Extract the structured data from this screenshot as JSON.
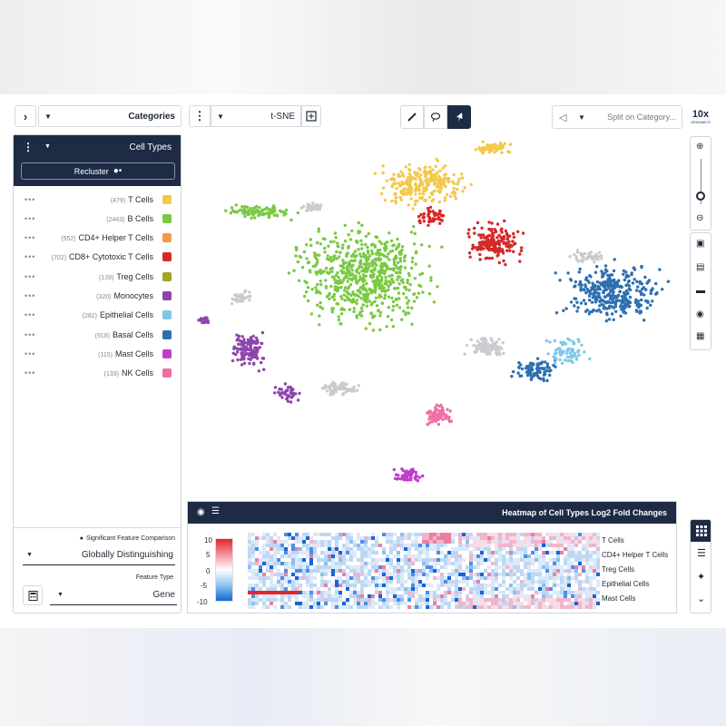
{
  "toolbar": {
    "categories_label": "Categories",
    "projection_label": "t-SNE",
    "split_placeholder": "Split on Category...",
    "logo_text": "10x",
    "logo_subtext": "GENOMICS",
    "nav_icon": "chevron-right-icon",
    "tools": [
      "brush-icon",
      "lasso-icon",
      "pointer-icon"
    ]
  },
  "left_panel": {
    "title": "Cell Types",
    "recluster_label": "Recluster",
    "items": [
      {
        "name": "T Cells",
        "count": "(479)",
        "color": "#f2c94c"
      },
      {
        "name": "B Cells",
        "count": "(2443)",
        "color": "#7ac943"
      },
      {
        "name": "CD4+ Helper T Cells",
        "count": "(552)",
        "color": "#f2994a"
      },
      {
        "name": "CD8+ Cytotoxic T Cells",
        "count": "(702)",
        "color": "#d62828"
      },
      {
        "name": "Treg Cells",
        "count": "(139)",
        "color": "#a3a32a"
      },
      {
        "name": "Monocytes",
        "count": "(320)",
        "color": "#8e44ad"
      },
      {
        "name": "Epithelial Cells",
        "count": "(282)",
        "color": "#7fc8e8"
      },
      {
        "name": "Basal Cells",
        "count": "(918)",
        "color": "#2e6fb0"
      },
      {
        "name": "Mast Cells",
        "count": "(115)",
        "color": "#c03cc9"
      },
      {
        "name": "NK Cells",
        "count": "(133)",
        "color": "#ef6fa6"
      }
    ],
    "sig_label": "Significant Feature Comparison",
    "sig_value": "Globally Distinguishing",
    "feature_type_label": "Feature Type",
    "feature_type_value": "Gene"
  },
  "heatmap": {
    "title": "Heatmap of Cell Types Log2 Fold Changes",
    "row_labels": [
      "T Cells",
      "CD4+ Helper T Cells",
      "Treg Cells",
      "Epithelial Cells",
      "Mast Cells"
    ],
    "scale_labels": [
      "10",
      "5",
      "0",
      "-5",
      "-10"
    ]
  }
}
